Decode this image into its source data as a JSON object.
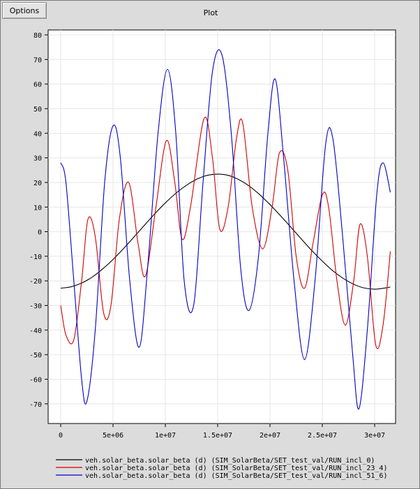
{
  "window": {
    "options_label": "Options",
    "plot_title": "Plot"
  },
  "chart_data": {
    "type": "line",
    "title": "Plot",
    "xlabel": "",
    "ylabel": "",
    "xlim": [
      -1200000,
      32000000
    ],
    "ylim": [
      -78,
      82
    ],
    "grid": true,
    "legend_position": "bottom",
    "x_ticks": [
      0,
      5000000,
      10000000,
      15000000,
      20000000,
      25000000,
      30000000
    ],
    "x_tick_labels": [
      "0",
      "5e+06",
      "1e+07",
      "1.5e+07",
      "2e+07",
      "2.5e+07",
      "3e+07"
    ],
    "y_ticks": [
      -70,
      -60,
      -50,
      -40,
      -30,
      -20,
      -10,
      0,
      10,
      20,
      30,
      40,
      50,
      60,
      70,
      80
    ],
    "y_tick_labels": [
      "-70",
      "-60",
      "-50",
      "-40",
      "-30",
      "-20",
      "-10",
      "0",
      "10",
      "20",
      "30",
      "40",
      "50",
      "60",
      "70",
      "80"
    ],
    "series": [
      {
        "name": "veh.solar_beta.solar_beta (d) (SIM_SolarBeta/SET_test_val/RUN_incl_0)",
        "color": "#000000",
        "x": [
          0,
          1000000,
          2000000,
          3000000,
          4000000,
          5000000,
          6000000,
          7000000,
          8000000,
          9000000,
          10000000,
          11000000,
          12000000,
          13000000,
          14000000,
          15000000,
          16000000,
          17000000,
          18000000,
          19000000,
          20000000,
          21000000,
          22000000,
          23000000,
          24000000,
          25000000,
          26000000,
          27000000,
          28000000,
          29000000,
          30000000,
          31000000,
          31500000
        ],
        "y": [
          -23,
          -22.4,
          -20.9,
          -18.5,
          -15.2,
          -11.3,
          -6.9,
          -2.2,
          2.6,
          7.3,
          11.7,
          15.6,
          18.8,
          21.3,
          22.9,
          23.4,
          22.9,
          21.2,
          18.6,
          15.1,
          11.0,
          6.5,
          1.8,
          -3.0,
          -7.7,
          -12.0,
          -15.9,
          -19.0,
          -21.4,
          -22.9,
          -23.4,
          -22.9,
          -22.5
        ]
      },
      {
        "name": "veh.solar_beta.solar_beta (d) (SIM_SolarBeta/SET_test_val/RUN_incl_23_4)",
        "color": "#d00000",
        "x": [
          0,
          500000,
          1250000,
          2000000,
          2600000,
          3300000,
          4100000,
          4800000,
          5600000,
          6500000,
          7400000,
          8100000,
          9100000,
          10100000,
          10900000,
          11600000,
          12400000,
          13700000,
          14500000,
          15200000,
          16000000,
          16800000,
          17400000,
          18300000,
          19300000,
          20200000,
          20900000,
          21700000,
          22500000,
          23300000,
          24100000,
          25000000,
          25600000,
          26400000,
          27200000,
          28000000,
          28600000,
          29300000,
          30100000,
          30800000,
          31500000
        ],
        "y": [
          -30,
          -42,
          -44,
          -20,
          5,
          -2,
          -33,
          -30,
          5,
          20,
          -5,
          -18,
          10,
          37,
          20,
          -3,
          10,
          46,
          30,
          1,
          10,
          38,
          44,
          10,
          -7,
          10,
          32,
          25,
          -10,
          -23,
          -5,
          15,
          10,
          -20,
          -38,
          -20,
          3,
          -10,
          -46,
          -38,
          -8
        ]
      },
      {
        "name": "veh.solar_beta.solar_beta (d) (SIM_SolarBeta/SET_test_val/RUN_incl_51_6)",
        "color": "#0000c8",
        "x": [
          0,
          500000,
          1250000,
          2000000,
          2500000,
          3300000,
          4200000,
          5000000,
          5700000,
          6600000,
          7500000,
          8300000,
          9300000,
          10200000,
          11000000,
          11800000,
          12700000,
          13600000,
          14500000,
          15400000,
          16300000,
          17200000,
          18000000,
          18900000,
          19800000,
          20500000,
          21300000,
          22300000,
          23300000,
          24300000,
          25300000,
          26000000,
          26900000,
          27900000,
          28500000,
          29300000,
          30200000,
          30800000,
          31500000
        ],
        "y": [
          28,
          20,
          -20,
          -60,
          -69,
          -40,
          20,
          43,
          30,
          -20,
          -47,
          -15,
          40,
          66,
          40,
          -20,
          -30,
          20,
          65,
          72,
          40,
          -15,
          -32,
          -10,
          40,
          62,
          30,
          -20,
          -52,
          -20,
          35,
          38,
          0,
          -50,
          -72,
          -40,
          15,
          28,
          16
        ]
      }
    ]
  }
}
